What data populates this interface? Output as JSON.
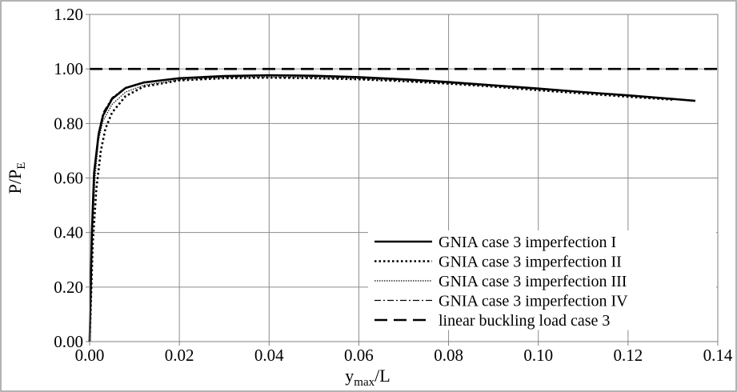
{
  "chart_data": {
    "type": "line",
    "title": "",
    "xlabel": {
      "main": "y",
      "sub": "max",
      "tail": "/L"
    },
    "ylabel": {
      "main": "P/P",
      "sub": "E"
    },
    "xlim": [
      0,
      0.14
    ],
    "ylim": [
      0,
      1.2
    ],
    "x_ticks": [
      0,
      0.02,
      0.04,
      0.06,
      0.08,
      0.1,
      0.12,
      0.14
    ],
    "x_tick_labels": [
      "0.00",
      "0.02",
      "0.04",
      "0.06",
      "0.08",
      "0.10",
      "0.12",
      "0.14"
    ],
    "y_ticks": [
      0,
      0.2,
      0.4,
      0.6,
      0.8,
      1.0,
      1.2
    ],
    "y_tick_labels": [
      "0.00",
      "0.20",
      "0.40",
      "0.60",
      "0.80",
      "1.00",
      "1.20"
    ],
    "grid": true,
    "legend_position": "bottom-right",
    "series": [
      {
        "name": "GNIA case 3 imperfection I",
        "style": "solid-thick",
        "color": "#000000",
        "points": [
          [
            0,
            0
          ],
          [
            0.0005,
            0.4
          ],
          [
            0.001,
            0.62
          ],
          [
            0.002,
            0.76
          ],
          [
            0.003,
            0.83
          ],
          [
            0.005,
            0.89
          ],
          [
            0.008,
            0.93
          ],
          [
            0.012,
            0.95
          ],
          [
            0.02,
            0.966
          ],
          [
            0.03,
            0.974
          ],
          [
            0.04,
            0.977
          ],
          [
            0.05,
            0.975
          ],
          [
            0.06,
            0.97
          ],
          [
            0.07,
            0.962
          ],
          [
            0.08,
            0.952
          ],
          [
            0.09,
            0.94
          ],
          [
            0.1,
            0.928
          ],
          [
            0.11,
            0.915
          ],
          [
            0.12,
            0.903
          ],
          [
            0.13,
            0.89
          ],
          [
            0.135,
            0.883
          ]
        ]
      },
      {
        "name": "GNIA case 3 imperfection II",
        "style": "dotted-thick",
        "color": "#000000",
        "points": [
          [
            0,
            0
          ],
          [
            0.0007,
            0.36
          ],
          [
            0.0015,
            0.56
          ],
          [
            0.0025,
            0.7
          ],
          [
            0.0035,
            0.78
          ],
          [
            0.005,
            0.84
          ],
          [
            0.008,
            0.9
          ],
          [
            0.012,
            0.935
          ],
          [
            0.02,
            0.958
          ],
          [
            0.03,
            0.966
          ],
          [
            0.04,
            0.968
          ],
          [
            0.05,
            0.966
          ],
          [
            0.06,
            0.962
          ],
          [
            0.07,
            0.955
          ],
          [
            0.08,
            0.946
          ],
          [
            0.09,
            0.935
          ],
          [
            0.1,
            0.922
          ],
          [
            0.11,
            0.91
          ],
          [
            0.12,
            0.898
          ],
          [
            0.13,
            0.887
          ]
        ]
      },
      {
        "name": "GNIA case 3 imperfection III",
        "style": "dotted-thin",
        "color": "#000000",
        "points": [
          [
            0,
            0
          ],
          [
            0.0006,
            0.38
          ],
          [
            0.0012,
            0.6
          ],
          [
            0.002,
            0.74
          ],
          [
            0.003,
            0.81
          ],
          [
            0.005,
            0.87
          ],
          [
            0.008,
            0.915
          ],
          [
            0.012,
            0.94
          ],
          [
            0.02,
            0.96
          ],
          [
            0.03,
            0.969
          ],
          [
            0.04,
            0.971
          ],
          [
            0.05,
            0.969
          ],
          [
            0.06,
            0.964
          ],
          [
            0.07,
            0.957
          ],
          [
            0.08,
            0.948
          ],
          [
            0.09,
            0.937
          ],
          [
            0.1,
            0.925
          ],
          [
            0.11,
            0.913
          ],
          [
            0.12,
            0.901
          ],
          [
            0.13,
            0.889
          ]
        ]
      },
      {
        "name": "GNIA case 3 imperfection IV",
        "style": "dashdot-thin",
        "color": "#000000",
        "points": [
          [
            0,
            0
          ],
          [
            0.0005,
            0.4
          ],
          [
            0.001,
            0.63
          ],
          [
            0.002,
            0.77
          ],
          [
            0.003,
            0.84
          ],
          [
            0.005,
            0.895
          ],
          [
            0.008,
            0.932
          ],
          [
            0.012,
            0.952
          ],
          [
            0.02,
            0.967
          ],
          [
            0.03,
            0.974
          ],
          [
            0.04,
            0.976
          ],
          [
            0.05,
            0.974
          ],
          [
            0.06,
            0.969
          ],
          [
            0.07,
            0.961
          ],
          [
            0.08,
            0.951
          ],
          [
            0.09,
            0.939
          ],
          [
            0.1,
            0.927
          ],
          [
            0.11,
            0.914
          ],
          [
            0.12,
            0.902
          ],
          [
            0.13,
            0.89
          ]
        ]
      },
      {
        "name": "linear buckling load case 3",
        "style": "dashed-thick",
        "color": "#000000",
        "points": [
          [
            0,
            1.0
          ],
          [
            0.14,
            1.0
          ]
        ]
      }
    ]
  }
}
